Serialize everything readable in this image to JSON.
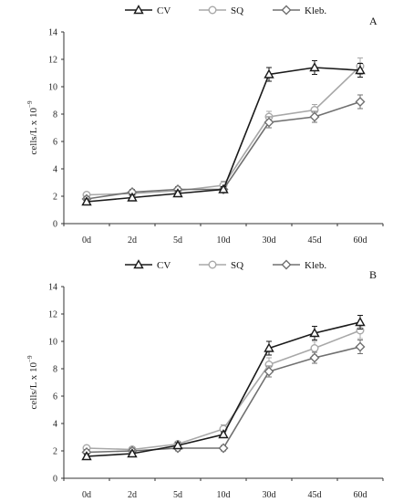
{
  "chart_data": [
    {
      "type": "line",
      "panel_label": "A",
      "categories": [
        "0d",
        "2d",
        "5d",
        "10d",
        "30d",
        "45d",
        "60d"
      ],
      "ylabel_main": "cells/L x 10",
      "ylabel_exp": "−9",
      "ylim": [
        0,
        14
      ],
      "yticks": [
        0,
        2,
        4,
        6,
        8,
        10,
        12,
        14
      ],
      "grid": false,
      "legend": "top-center",
      "series": [
        {
          "name": "CV",
          "marker": "triangle",
          "color": "#1a1a1a",
          "values": [
            1.6,
            1.9,
            2.2,
            2.5,
            10.9,
            11.4,
            11.2
          ],
          "errors": [
            0.2,
            0.2,
            0.2,
            0.2,
            0.5,
            0.5,
            0.5
          ]
        },
        {
          "name": "SQ",
          "marker": "circle",
          "color": "#a8a8a8",
          "values": [
            2.1,
            2.2,
            2.4,
            2.8,
            7.8,
            8.3,
            11.5
          ],
          "errors": [
            0.2,
            0.2,
            0.2,
            0.3,
            0.4,
            0.4,
            0.6
          ]
        },
        {
          "name": "Kleb.",
          "marker": "diamond",
          "color": "#707070",
          "values": [
            1.8,
            2.3,
            2.5,
            2.5,
            7.4,
            7.8,
            8.9
          ],
          "errors": [
            0.2,
            0.2,
            0.2,
            0.2,
            0.4,
            0.4,
            0.5
          ]
        }
      ]
    },
    {
      "type": "line",
      "panel_label": "B",
      "categories": [
        "0d",
        "2d",
        "5d",
        "10d",
        "30d",
        "45d",
        "60d"
      ],
      "ylabel_main": "cells/L x 10",
      "ylabel_exp": "−9",
      "ylim": [
        0,
        14
      ],
      "yticks": [
        0,
        2,
        4,
        6,
        8,
        10,
        12,
        14
      ],
      "grid": false,
      "legend": "top-center",
      "series": [
        {
          "name": "CV",
          "marker": "triangle",
          "color": "#1a1a1a",
          "values": [
            1.6,
            1.8,
            2.4,
            3.2,
            9.5,
            10.6,
            11.4
          ],
          "errors": [
            0.2,
            0.2,
            0.2,
            0.2,
            0.5,
            0.5,
            0.5
          ]
        },
        {
          "name": "SQ",
          "marker": "circle",
          "color": "#a8a8a8",
          "values": [
            2.2,
            2.1,
            2.5,
            3.6,
            8.3,
            9.5,
            10.8
          ],
          "errors": [
            0.2,
            0.2,
            0.2,
            0.3,
            0.5,
            0.5,
            0.6
          ]
        },
        {
          "name": "Kleb.",
          "marker": "diamond",
          "color": "#707070",
          "values": [
            1.9,
            2.0,
            2.2,
            2.2,
            7.8,
            8.8,
            9.6
          ],
          "errors": [
            0.2,
            0.2,
            0.2,
            0.2,
            0.4,
            0.4,
            0.5
          ]
        }
      ]
    }
  ]
}
